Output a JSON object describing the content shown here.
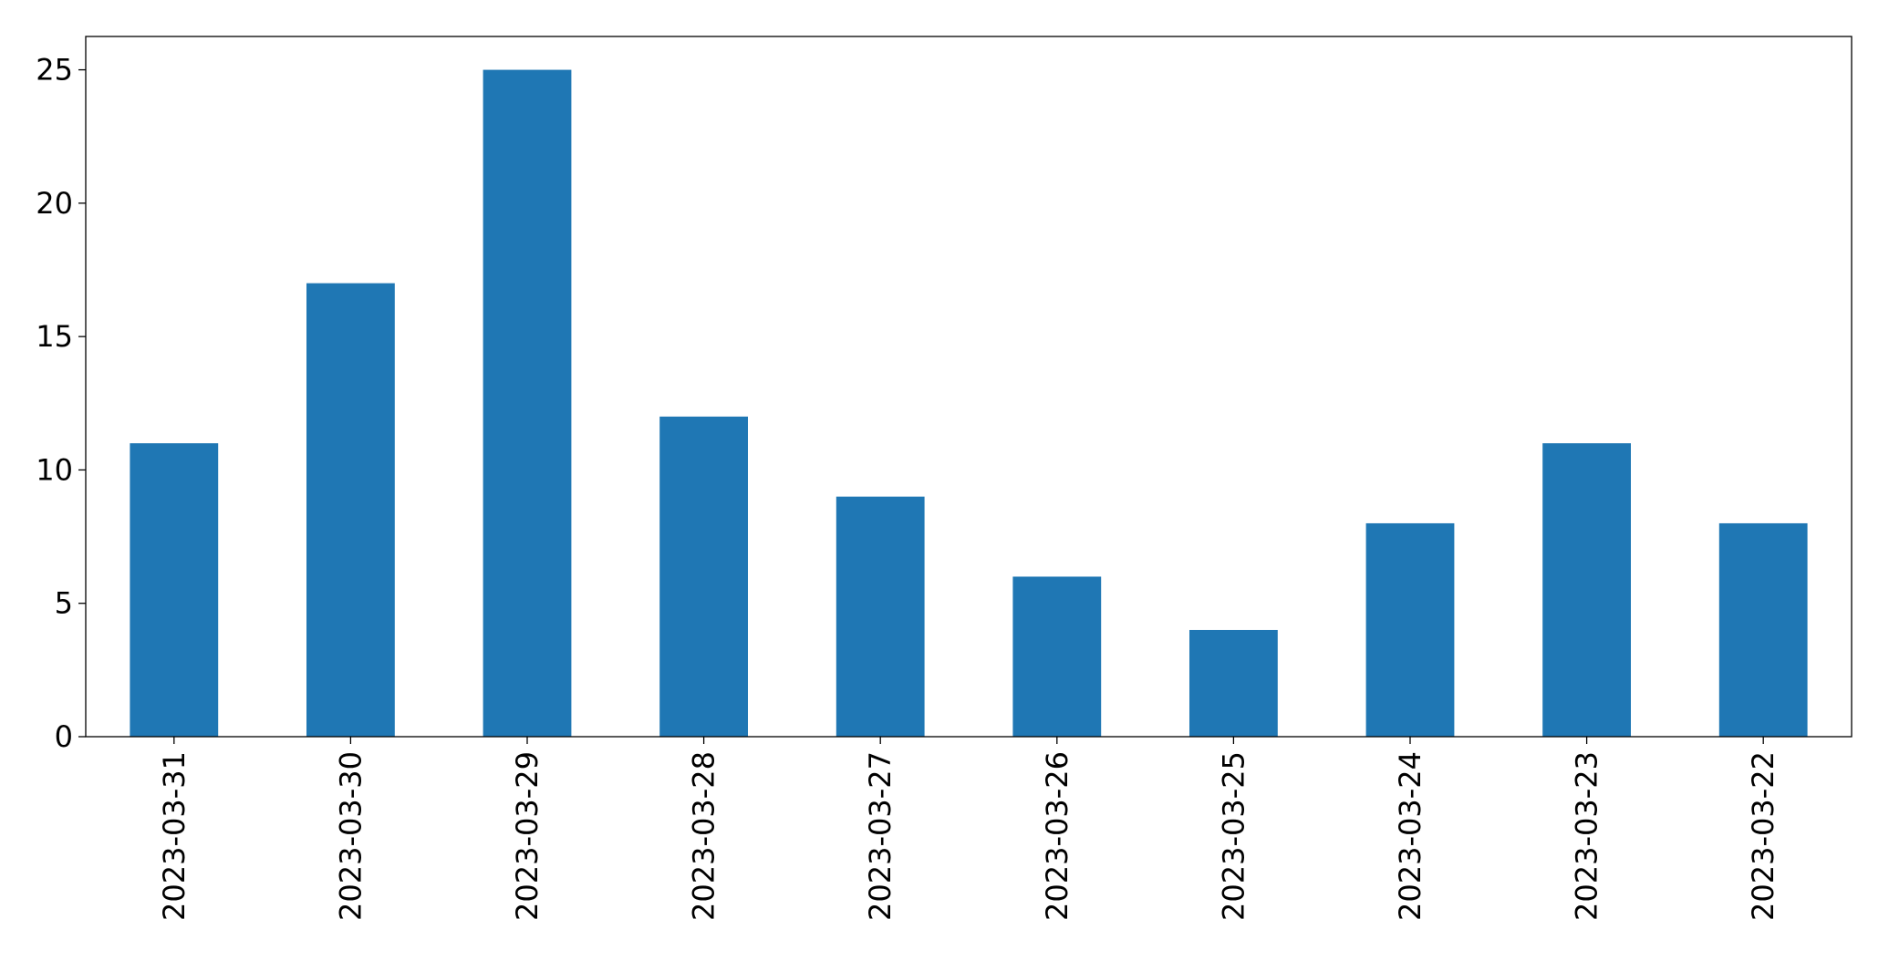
{
  "chart_data": {
    "type": "bar",
    "categories": [
      "2023-03-31",
      "2023-03-30",
      "2023-03-29",
      "2023-03-28",
      "2023-03-27",
      "2023-03-26",
      "2023-03-25",
      "2023-03-24",
      "2023-03-23",
      "2023-03-22"
    ],
    "values": [
      11,
      17,
      25,
      12,
      9,
      6,
      4,
      8,
      11,
      8
    ],
    "color": "#1f77b4",
    "ylim": [
      0,
      26.25
    ],
    "yticks": [
      0,
      5,
      10,
      15,
      20,
      25
    ],
    "grid": false
  }
}
